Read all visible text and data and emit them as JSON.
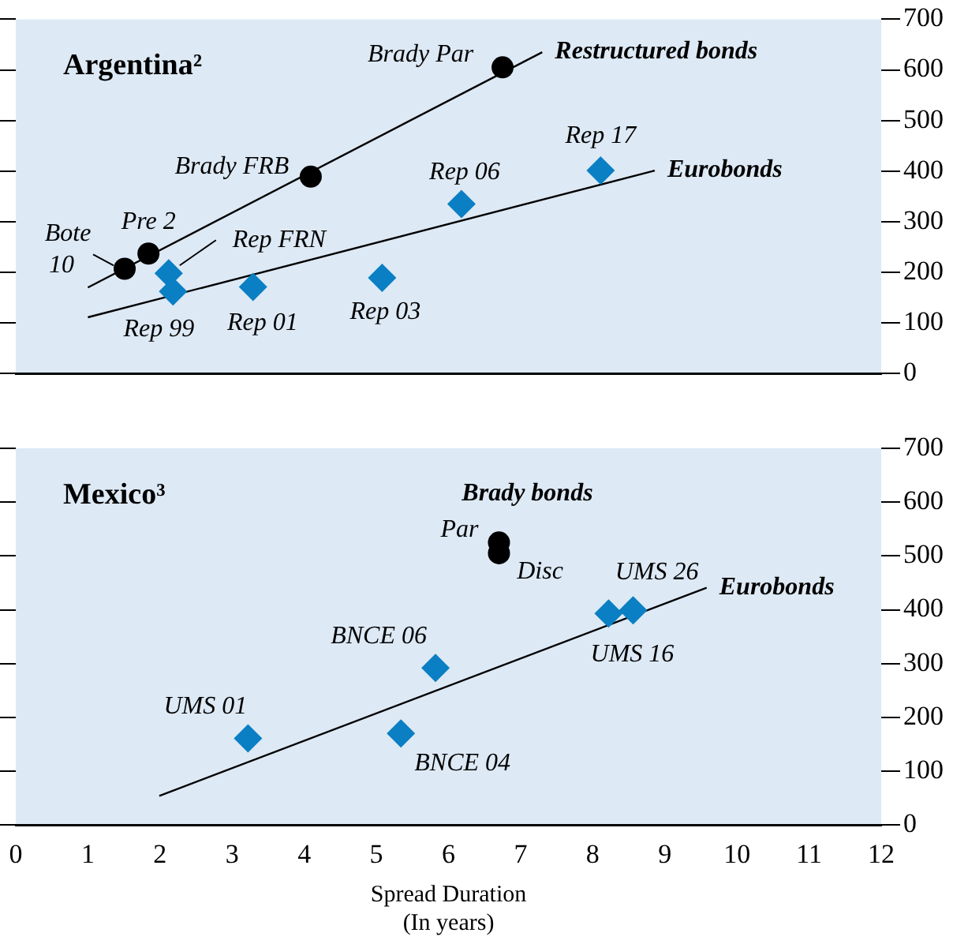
{
  "chart_data": [
    {
      "type": "scatter",
      "title": "Argentina²",
      "xlim": [
        0,
        12
      ],
      "xticks": [
        0,
        1,
        2,
        3,
        4,
        5,
        6,
        7,
        8,
        9,
        10,
        11,
        12
      ],
      "ylim": [
        0,
        700
      ],
      "yticks": [
        0,
        100,
        200,
        300,
        400,
        500,
        600,
        700
      ],
      "tick_labels": "y",
      "series": [
        {
          "type": "scatter",
          "color": "#000000",
          "marker": "circle",
          "x": [
            1.51,
            1.84,
            4.09,
            6.75
          ],
          "values": [
            207,
            237,
            389,
            605
          ]
        },
        {
          "type": "scatter",
          "color": "#0a7fc4",
          "marker": "diamond",
          "x": [
            2.12,
            2.18,
            3.29,
            5.08,
            6.18,
            8.11
          ],
          "values": [
            198,
            162,
            171,
            189,
            335,
            401
          ]
        },
        {
          "type": "line",
          "name": "Restructured bonds",
          "color": "#000000",
          "marker": "none",
          "x": [
            1.0,
            7.3
          ],
          "values": [
            170,
            635
          ]
        },
        {
          "type": "line",
          "name": "Eurobonds",
          "color": "#000000",
          "marker": "none",
          "x": [
            1.0,
            8.86
          ],
          "values": [
            111,
            401
          ]
        }
      ],
      "annotations": [
        {
          "text": "Bote\n10",
          "x": 1.51,
          "y": 207
        },
        {
          "text": "Pre 2",
          "x": 1.84,
          "y": 237
        },
        {
          "text": "Brady FRB",
          "x": 4.09,
          "y": 389
        },
        {
          "text": "Brady Par",
          "x": 6.75,
          "y": 605
        },
        {
          "text": "Rep FRN",
          "x": 2.12,
          "y": 198
        },
        {
          "text": "Rep 99",
          "x": 2.18,
          "y": 162
        },
        {
          "text": "Rep 01",
          "x": 3.29,
          "y": 171
        },
        {
          "text": "Rep 03",
          "x": 5.08,
          "y": 189
        },
        {
          "text": "Rep 06",
          "x": 6.18,
          "y": 335
        },
        {
          "text": "Rep 17",
          "x": 8.11,
          "y": 401
        }
      ]
    },
    {
      "type": "scatter",
      "title": "Mexico³",
      "xlabel": "Spread Duration\n(In years)",
      "xlim": [
        0,
        12
      ],
      "xticks": [
        0,
        1,
        2,
        3,
        4,
        5,
        6,
        7,
        8,
        9,
        10,
        11,
        12
      ],
      "ylim": [
        0,
        700
      ],
      "yticks": [
        0,
        100,
        200,
        300,
        400,
        500,
        600,
        700
      ],
      "series": [
        {
          "type": "scatter",
          "name": "Brady bonds",
          "color": "#000000",
          "marker": "circle",
          "x": [
            6.7,
            6.7
          ],
          "values": [
            525,
            505
          ]
        },
        {
          "type": "scatter",
          "color": "#0a7fc4",
          "marker": "diamond",
          "x": [
            3.22,
            5.34,
            5.82,
            8.22,
            8.56
          ],
          "values": [
            161,
            170,
            292,
            393,
            399
          ]
        },
        {
          "type": "line",
          "name": "Eurobonds",
          "color": "#000000",
          "marker": "none",
          "x": [
            1.99,
            9.58
          ],
          "values": [
            54,
            441
          ]
        }
      ],
      "annotations": [
        {
          "text": "Par",
          "x": 6.7,
          "y": 525
        },
        {
          "text": "Disc",
          "x": 6.7,
          "y": 505
        },
        {
          "text": "UMS 01",
          "x": 3.22,
          "y": 161
        },
        {
          "text": "BNCE 04",
          "x": 5.34,
          "y": 170
        },
        {
          "text": "BNCE 06",
          "x": 5.82,
          "y": 292
        },
        {
          "text": "UMS 16",
          "x": 8.22,
          "y": 393
        },
        {
          "text": "UMS 26",
          "x": 8.56,
          "y": 399
        }
      ]
    }
  ]
}
